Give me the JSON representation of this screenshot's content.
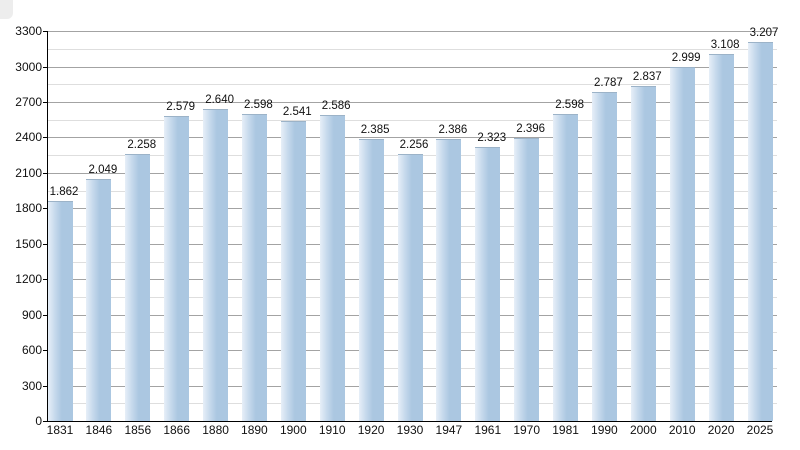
{
  "chart_data": {
    "type": "bar",
    "categories": [
      "1831",
      "1846",
      "1856",
      "1866",
      "1880",
      "1890",
      "1900",
      "1910",
      "1920",
      "1930",
      "1947",
      "1961",
      "1970",
      "1981",
      "1990",
      "2000",
      "2010",
      "2020",
      "2025"
    ],
    "values": [
      1862,
      2049,
      2258,
      2579,
      2640,
      2598,
      2541,
      2586,
      2385,
      2256,
      2386,
      2323,
      2396,
      2598,
      2787,
      2837,
      2999,
      3108,
      3207
    ],
    "value_labels": [
      "1.862",
      "2.049",
      "2.258",
      "2.579",
      "2.640",
      "2.598",
      "2.541",
      "2.586",
      "2.385",
      "2.256",
      "2.386",
      "2.323",
      "2.396",
      "2.598",
      "2.787",
      "2.837",
      "2.999",
      "3.108",
      "3.207"
    ],
    "y_ticks": [
      0,
      300,
      600,
      900,
      1200,
      1500,
      1800,
      2100,
      2400,
      2700,
      3000,
      3300
    ],
    "ylim": [
      0,
      3300
    ],
    "grid": {
      "major_step": 300,
      "minor_step": 150,
      "grid_on": true
    },
    "legend": {
      "visible": false
    },
    "xlabel": "",
    "ylabel": "",
    "colors": {
      "bar_fill": "#abc7e1",
      "bar_light": "#e7eff8",
      "bar_edge": "#9cb3c8",
      "grid_major": "#a3a3a3",
      "grid_minor": "#dedede",
      "axis": "#000000",
      "text": "#111111",
      "corner_fragment": "#ededed"
    }
  }
}
